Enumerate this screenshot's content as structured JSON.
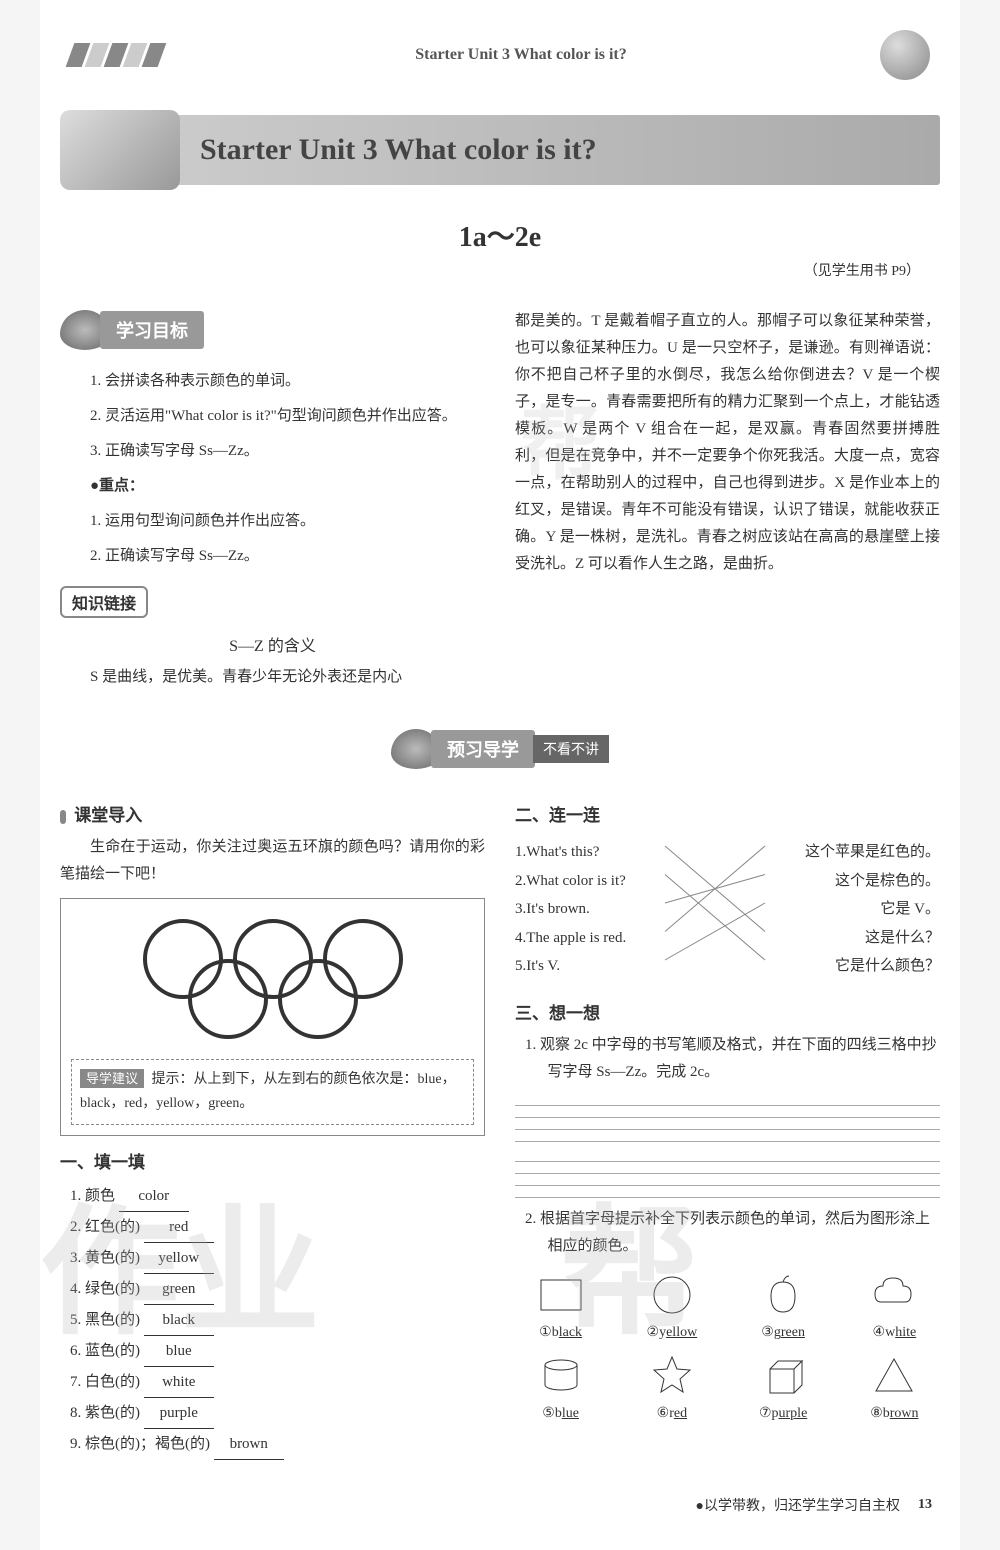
{
  "header": {
    "breadcrumb": "Starter Unit 3   What color is it?",
    "unit_title": "Starter Unit 3  What color is it?",
    "section_range": "1a～2e",
    "page_ref": "（见学生用书 P9）"
  },
  "goals": {
    "label": "学习目标",
    "items": [
      "1. 会拼读各种表示颜色的单词。",
      "2. 灵活运用\"What color is it?\"句型询问颜色并作出应答。",
      "3. 正确读写字母 Ss—Zz。"
    ],
    "focus_label": "●重点：",
    "focus_items": [
      "1. 运用句型询问颜色并作出应答。",
      "2. 正确读写字母 Ss—Zz。"
    ]
  },
  "knowledge": {
    "label": "知识链接",
    "subtitle": "S—Z 的含义",
    "para1": "S 是曲线，是优美。青春少年无论外表还是内心",
    "para2": "都是美的。T 是戴着帽子直立的人。那帽子可以象征某种荣誉，也可以象征某种压力。U 是一只空杯子，是谦逊。有则禅语说：你不把自己杯子里的水倒尽，我怎么给你倒进去？V 是一个楔子，是专一。青春需要把所有的精力汇聚到一个点上，才能钻透模板。W 是两个 V 组合在一起，是双赢。青春固然要拼搏胜利，但是在竞争中，并不一定要争个你死我活。大度一点，宽容一点，在帮助别人的过程中，自己也得到进步。X 是作业本上的红叉，是错误。青年不可能没有错误，认识了错误，就能收获正确。Y 是一株树，是洗礼。青春之树应该站在高高的悬崖壁上接受洗礼。Z 可以看作人生之路，是曲折。"
  },
  "preview": {
    "label": "预习导学",
    "suffix": "不看不讲"
  },
  "classroom": {
    "label": "课堂导入",
    "text": "生命在于运动，你关注过奥运五环旗的颜色吗？请用你的彩笔描绘一下吧！",
    "hint_label": "导学建议",
    "hint_text": "提示：从上到下，从左到右的颜色依次是：blue，black，red，yellow，green。"
  },
  "olympic_rings": {
    "ring_colors": [
      "#333",
      "#333",
      "#333",
      "#333",
      "#333"
    ],
    "stroke_width": 4,
    "radius": 38
  },
  "fill": {
    "heading": "一、填一填",
    "items": [
      {
        "zh": "1. 颜色",
        "ans": "color"
      },
      {
        "zh": "2. 红色(的)",
        "ans": "red"
      },
      {
        "zh": "3. 黄色(的)",
        "ans": "yellow"
      },
      {
        "zh": "4. 绿色(的)",
        "ans": "green"
      },
      {
        "zh": "5. 黑色(的)",
        "ans": "black"
      },
      {
        "zh": "6. 蓝色(的)",
        "ans": "blue"
      },
      {
        "zh": "7. 白色(的)",
        "ans": "white"
      },
      {
        "zh": "8. 紫色(的)",
        "ans": "purple"
      },
      {
        "zh": "9. 棕色(的)；褐色(的)",
        "ans": "brown"
      }
    ]
  },
  "match": {
    "heading": "二、连一连",
    "left": [
      "1.What's this?",
      "2.What color is it?",
      "3.It's brown.",
      "4.The apple is red.",
      "5.It's V."
    ],
    "right": [
      "这个苹果是红色的。",
      "这个是棕色的。",
      "它是 V。",
      "这是什么？",
      "它是什么颜色？"
    ],
    "lines": [
      [
        0,
        3
      ],
      [
        1,
        4
      ],
      [
        2,
        1
      ],
      [
        3,
        0
      ],
      [
        4,
        2
      ]
    ],
    "line_color": "#888"
  },
  "think": {
    "heading": "三、想一想",
    "item1": "1. 观察 2c 中字母的书写笔顺及格式，并在下面的四线三格中抄写字母 Ss—Zz。完成 2c。",
    "item2": "2. 根据首字母提示补全下列表示颜色的单词，然后为图形涂上相应的颜色。",
    "shapes_row1": [
      {
        "num": "①",
        "first": "b",
        "rest": "lack",
        "shape": "rect"
      },
      {
        "num": "②",
        "first": "y",
        "rest": "ellow",
        "shape": "circle"
      },
      {
        "num": "③",
        "first": "g",
        "rest": "reen",
        "shape": "apple"
      },
      {
        "num": "④",
        "first": "w",
        "rest": "hite",
        "shape": "cloud"
      }
    ],
    "shapes_row2": [
      {
        "num": "⑤",
        "first": "b",
        "rest": "lue",
        "shape": "cylinder"
      },
      {
        "num": "⑥",
        "first": "r",
        "rest": "ed",
        "shape": "star"
      },
      {
        "num": "⑦",
        "first": "p",
        "rest": "urple",
        "shape": "cube"
      },
      {
        "num": "⑧",
        "first": "b",
        "rest": "rown",
        "shape": "triangle"
      }
    ]
  },
  "footer": {
    "slogan": "●以学带教，归还学生学习自主权",
    "page_num": "13"
  }
}
